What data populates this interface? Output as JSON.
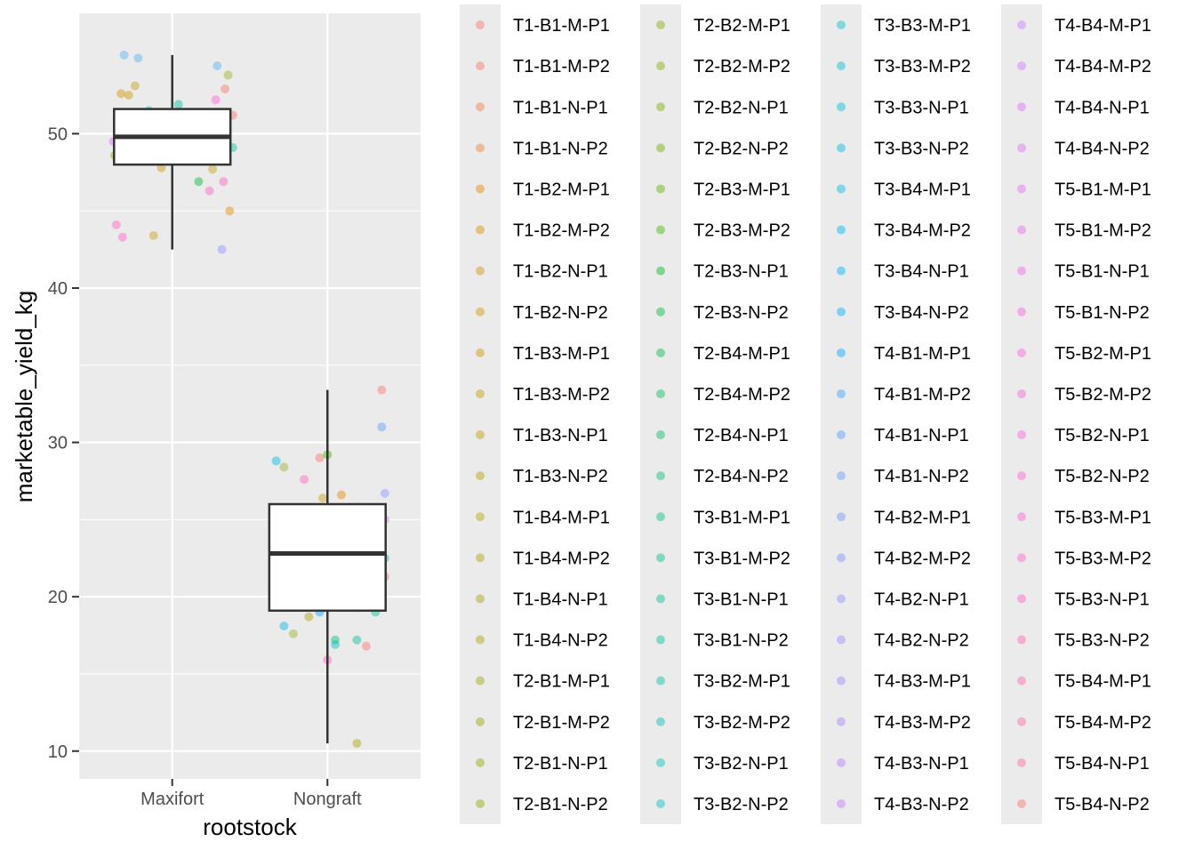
{
  "chart_data": {
    "type": "boxplot",
    "xlabel": "rootstock",
    "ylabel": "marketable_yield_kg",
    "categories": [
      "Maxifort",
      "Nongraft"
    ],
    "ylim": [
      8.2,
      57.8
    ],
    "yticks": [
      10,
      20,
      30,
      40,
      50
    ],
    "grid": true,
    "legend_placement": "right",
    "boxes": [
      {
        "category": "Maxifort",
        "min": 42.5,
        "q1": 48.0,
        "median": 49.8,
        "q3": 51.6,
        "max": 55.1
      },
      {
        "category": "Nongraft",
        "min": 10.5,
        "q1": 19.1,
        "median": 22.8,
        "q3": 26.0,
        "max": 33.4
      }
    ],
    "points": [
      {
        "category": "Maxifort",
        "jitter": -0.31,
        "y": 55.1,
        "color": "#53B4F2"
      },
      {
        "category": "Maxifort",
        "jitter": -0.22,
        "y": 54.9,
        "color": "#53B4F2"
      },
      {
        "category": "Maxifort",
        "jitter": 0.29,
        "y": 54.4,
        "color": "#53B4F2"
      },
      {
        "category": "Maxifort",
        "jitter": 0.36,
        "y": 53.8,
        "color": "#9DB027"
      },
      {
        "category": "Maxifort",
        "jitter": -0.24,
        "y": 53.1,
        "color": "#C3A218"
      },
      {
        "category": "Maxifort",
        "jitter": 0.34,
        "y": 52.9,
        "color": "#F8766D"
      },
      {
        "category": "Maxifort",
        "jitter": -0.33,
        "y": 52.6,
        "color": "#D39200"
      },
      {
        "category": "Maxifort",
        "jitter": -0.28,
        "y": 52.5,
        "color": "#D39200"
      },
      {
        "category": "Maxifort",
        "jitter": 0.28,
        "y": 52.2,
        "color": "#FC61D5"
      },
      {
        "category": "Maxifort",
        "jitter": 0.04,
        "y": 51.9,
        "color": "#00C19F"
      },
      {
        "category": "Maxifort",
        "jitter": -0.15,
        "y": 51.5,
        "color": "#00B9E3"
      },
      {
        "category": "Maxifort",
        "jitter": 0.39,
        "y": 51.2,
        "color": "#F8766D"
      },
      {
        "category": "Maxifort",
        "jitter": -0.38,
        "y": 49.5,
        "color": "#DB72FB"
      },
      {
        "category": "Maxifort",
        "jitter": 0.39,
        "y": 49.1,
        "color": "#00C19F"
      },
      {
        "category": "Maxifort",
        "jitter": -0.37,
        "y": 48.6,
        "color": "#7CAE00"
      },
      {
        "category": "Maxifort",
        "jitter": -0.07,
        "y": 47.8,
        "color": "#D39200"
      },
      {
        "category": "Maxifort",
        "jitter": 0.26,
        "y": 47.7,
        "color": "#C3A218"
      },
      {
        "category": "Maxifort",
        "jitter": 0.17,
        "y": 46.9,
        "color": "#00BA38"
      },
      {
        "category": "Maxifort",
        "jitter": 0.33,
        "y": 46.9,
        "color": "#FF61C3"
      },
      {
        "category": "Maxifort",
        "jitter": 0.24,
        "y": 46.3,
        "color": "#FF61C3"
      },
      {
        "category": "Maxifort",
        "jitter": 0.37,
        "y": 45.0,
        "color": "#E58700"
      },
      {
        "category": "Maxifort",
        "jitter": -0.36,
        "y": 44.1,
        "color": "#FF61C3"
      },
      {
        "category": "Maxifort",
        "jitter": -0.32,
        "y": 43.3,
        "color": "#FF61C3"
      },
      {
        "category": "Maxifort",
        "jitter": -0.12,
        "y": 43.4,
        "color": "#C3A218"
      },
      {
        "category": "Maxifort",
        "jitter": 0.32,
        "y": 42.5,
        "color": "#8B93FF"
      },
      {
        "category": "Nongraft",
        "jitter": 0.35,
        "y": 33.4,
        "color": "#F8766D"
      },
      {
        "category": "Nongraft",
        "jitter": 0.35,
        "y": 31.0,
        "color": "#619CFF"
      },
      {
        "category": "Nongraft",
        "jitter": -0.33,
        "y": 28.8,
        "color": "#00B9E3"
      },
      {
        "category": "Nongraft",
        "jitter": -0.28,
        "y": 28.4,
        "color": "#9DB027"
      },
      {
        "category": "Nongraft",
        "jitter": -0.05,
        "y": 29.0,
        "color": "#F8766D"
      },
      {
        "category": "Nongraft",
        "jitter": 0.0,
        "y": 29.2,
        "color": "#39B600"
      },
      {
        "category": "Nongraft",
        "jitter": -0.15,
        "y": 27.6,
        "color": "#FF61C3"
      },
      {
        "category": "Nongraft",
        "jitter": 0.37,
        "y": 26.7,
        "color": "#8B93FF"
      },
      {
        "category": "Nongraft",
        "jitter": 0.09,
        "y": 26.6,
        "color": "#E58700"
      },
      {
        "category": "Nongraft",
        "jitter": -0.03,
        "y": 26.4,
        "color": "#C3A218"
      },
      {
        "category": "Nongraft",
        "jitter": 0.2,
        "y": 25.8,
        "color": "#F8766D"
      },
      {
        "category": "Nongraft",
        "jitter": 0.37,
        "y": 25.0,
        "color": "#DB72FB"
      },
      {
        "category": "Nongraft",
        "jitter": 0.37,
        "y": 22.5,
        "color": "#00BFC4"
      },
      {
        "category": "Nongraft",
        "jitter": 0.37,
        "y": 21.3,
        "color": "#F8766D"
      },
      {
        "category": "Nongraft",
        "jitter": 0.2,
        "y": 19.3,
        "color": "#00C08B"
      },
      {
        "category": "Nongraft",
        "jitter": 0.31,
        "y": 19.0,
        "color": "#00C08B"
      },
      {
        "category": "Nongraft",
        "jitter": -0.12,
        "y": 18.7,
        "color": "#AEA200"
      },
      {
        "category": "Nongraft",
        "jitter": -0.05,
        "y": 19.0,
        "color": "#00A9FF"
      },
      {
        "category": "Nongraft",
        "jitter": -0.28,
        "y": 18.1,
        "color": "#00B9E3"
      },
      {
        "category": "Nongraft",
        "jitter": -0.22,
        "y": 17.6,
        "color": "#9DB027"
      },
      {
        "category": "Nongraft",
        "jitter": 0.05,
        "y": 16.9,
        "color": "#00BFC4"
      },
      {
        "category": "Nongraft",
        "jitter": 0.05,
        "y": 17.2,
        "color": "#00C08B"
      },
      {
        "category": "Nongraft",
        "jitter": 0.19,
        "y": 17.2,
        "color": "#00C19F"
      },
      {
        "category": "Nongraft",
        "jitter": 0.25,
        "y": 16.8,
        "color": "#F8766D"
      },
      {
        "category": "Nongraft",
        "jitter": 0.0,
        "y": 15.9,
        "color": "#FF62BC"
      },
      {
        "category": "Nongraft",
        "jitter": 0.19,
        "y": 10.5,
        "color": "#AEA200"
      }
    ],
    "legend": [
      {
        "label": "T1-B1-M-P1",
        "color": "#F8766D"
      },
      {
        "label": "T1-B1-M-P2",
        "color": "#F47B5B"
      },
      {
        "label": "T1-B1-N-P1",
        "color": "#EF7F48"
      },
      {
        "label": "T1-B1-N-P2",
        "color": "#EA8331"
      },
      {
        "label": "T1-B2-M-P1",
        "color": "#E58700"
      },
      {
        "label": "T1-B2-M-P2",
        "color": "#DF8C00"
      },
      {
        "label": "T1-B2-N-P1",
        "color": "#D89000"
      },
      {
        "label": "T1-B2-N-P2",
        "color": "#D39200"
      },
      {
        "label": "T1-B3-M-P1",
        "color": "#CC9600"
      },
      {
        "label": "T1-B3-M-P2",
        "color": "#C79800"
      },
      {
        "label": "T1-B3-N-P1",
        "color": "#C39C00"
      },
      {
        "label": "T1-B3-N-P2",
        "color": "#BD9E00"
      },
      {
        "label": "T1-B4-M-P1",
        "color": "#B7A100"
      },
      {
        "label": "T1-B4-M-P2",
        "color": "#B2A300"
      },
      {
        "label": "T1-B4-N-P1",
        "color": "#AEA200"
      },
      {
        "label": "T1-B4-N-P2",
        "color": "#A8A600"
      },
      {
        "label": "T2-B1-M-P1",
        "color": "#A3A500"
      },
      {
        "label": "T2-B1-M-P2",
        "color": "#9DA700"
      },
      {
        "label": "T2-B1-N-P1",
        "color": "#96A900"
      },
      {
        "label": "T2-B1-N-P2",
        "color": "#8FAA00"
      },
      {
        "label": "T2-B2-M-P1",
        "color": "#88AC00"
      },
      {
        "label": "T2-B2-M-P2",
        "color": "#80AD00"
      },
      {
        "label": "T2-B2-N-P1",
        "color": "#7CAE00"
      },
      {
        "label": "T2-B2-N-P2",
        "color": "#6FB000"
      },
      {
        "label": "T2-B3-M-P1",
        "color": "#5DB100"
      },
      {
        "label": "T2-B3-M-P2",
        "color": "#39B600"
      },
      {
        "label": "T2-B3-N-P1",
        "color": "#00B81F"
      },
      {
        "label": "T2-B3-N-P2",
        "color": "#00BA38"
      },
      {
        "label": "T2-B4-M-P1",
        "color": "#00BB4B"
      },
      {
        "label": "T2-B4-M-P2",
        "color": "#00BC5B"
      },
      {
        "label": "T2-B4-N-P1",
        "color": "#00BD69"
      },
      {
        "label": "T2-B4-N-P2",
        "color": "#00BE76"
      },
      {
        "label": "T3-B1-M-P1",
        "color": "#00BF82"
      },
      {
        "label": "T3-B1-M-P2",
        "color": "#00C08B"
      },
      {
        "label": "T3-B1-N-P1",
        "color": "#00C097"
      },
      {
        "label": "T3-B1-N-P2",
        "color": "#00C19F"
      },
      {
        "label": "T3-B2-M-P1",
        "color": "#00C1A9"
      },
      {
        "label": "T3-B2-M-P2",
        "color": "#00C1B3"
      },
      {
        "label": "T3-B2-N-P1",
        "color": "#00C0BB"
      },
      {
        "label": "T3-B2-N-P2",
        "color": "#00BFC4"
      },
      {
        "label": "T3-B3-M-P1",
        "color": "#00BECC"
      },
      {
        "label": "T3-B3-M-P2",
        "color": "#00BCD4"
      },
      {
        "label": "T3-B3-N-P1",
        "color": "#00BBDB"
      },
      {
        "label": "T3-B3-N-P2",
        "color": "#00B9E3"
      },
      {
        "label": "T3-B4-M-P1",
        "color": "#00B7E9"
      },
      {
        "label": "T3-B4-M-P2",
        "color": "#00B4EF"
      },
      {
        "label": "T3-B4-N-P1",
        "color": "#00B0F6"
      },
      {
        "label": "T3-B4-N-P2",
        "color": "#00ADFA"
      },
      {
        "label": "T4-B1-M-P1",
        "color": "#00A9FF"
      },
      {
        "label": "T4-B1-M-P2",
        "color": "#35A2FF"
      },
      {
        "label": "T4-B1-N-P1",
        "color": "#529EFF"
      },
      {
        "label": "T4-B1-N-P2",
        "color": "#619CFF"
      },
      {
        "label": "T4-B2-M-P1",
        "color": "#7197FF"
      },
      {
        "label": "T4-B2-M-P2",
        "color": "#7F91FF"
      },
      {
        "label": "T4-B2-N-P1",
        "color": "#8B93FF"
      },
      {
        "label": "T4-B2-N-P2",
        "color": "#988CFF"
      },
      {
        "label": "T4-B3-M-P1",
        "color": "#A286FF"
      },
      {
        "label": "T4-B3-M-P2",
        "color": "#AC81FF"
      },
      {
        "label": "T4-B3-N-P1",
        "color": "#B57BFF"
      },
      {
        "label": "T4-B3-N-P2",
        "color": "#C077FF"
      },
      {
        "label": "T4-B4-M-P1",
        "color": "#C77CFF"
      },
      {
        "label": "T4-B4-M-P2",
        "color": "#CF78FF"
      },
      {
        "label": "T4-B4-N-P1",
        "color": "#DB72FB"
      },
      {
        "label": "T4-B4-N-P2",
        "color": "#E26EF7"
      },
      {
        "label": "T5-B1-M-P1",
        "color": "#E76BF3"
      },
      {
        "label": "T5-B1-M-P2",
        "color": "#EB69EE"
      },
      {
        "label": "T5-B1-N-P1",
        "color": "#F066EA"
      },
      {
        "label": "T5-B1-N-P2",
        "color": "#F265E2"
      },
      {
        "label": "T5-B2-M-P1",
        "color": "#F564E3"
      },
      {
        "label": "T5-B2-M-P2",
        "color": "#F863D8"
      },
      {
        "label": "T5-B2-N-P1",
        "color": "#FB61D7"
      },
      {
        "label": "T5-B2-N-P2",
        "color": "#FC61D5"
      },
      {
        "label": "T5-B3-M-P1",
        "color": "#FD61D1"
      },
      {
        "label": "T5-B3-M-P2",
        "color": "#FF61C9"
      },
      {
        "label": "T5-B3-N-P1",
        "color": "#FF61C3"
      },
      {
        "label": "T5-B3-N-P2",
        "color": "#FF62BC"
      },
      {
        "label": "T5-B4-M-P1",
        "color": "#FF64B0"
      },
      {
        "label": "T5-B4-M-P2",
        "color": "#FF67A4"
      },
      {
        "label": "T5-B4-N-P1",
        "color": "#FD6B96"
      },
      {
        "label": "T5-B4-N-P2",
        "color": "#F8766D"
      }
    ],
    "colors": {
      "panel_background": "#EBEBEB",
      "grid": "#FFFFFF",
      "box_fill": "#FFFFFF",
      "box_line": "#333333",
      "axis_text": "#4D4D4D",
      "title_text": "#000000"
    }
  }
}
